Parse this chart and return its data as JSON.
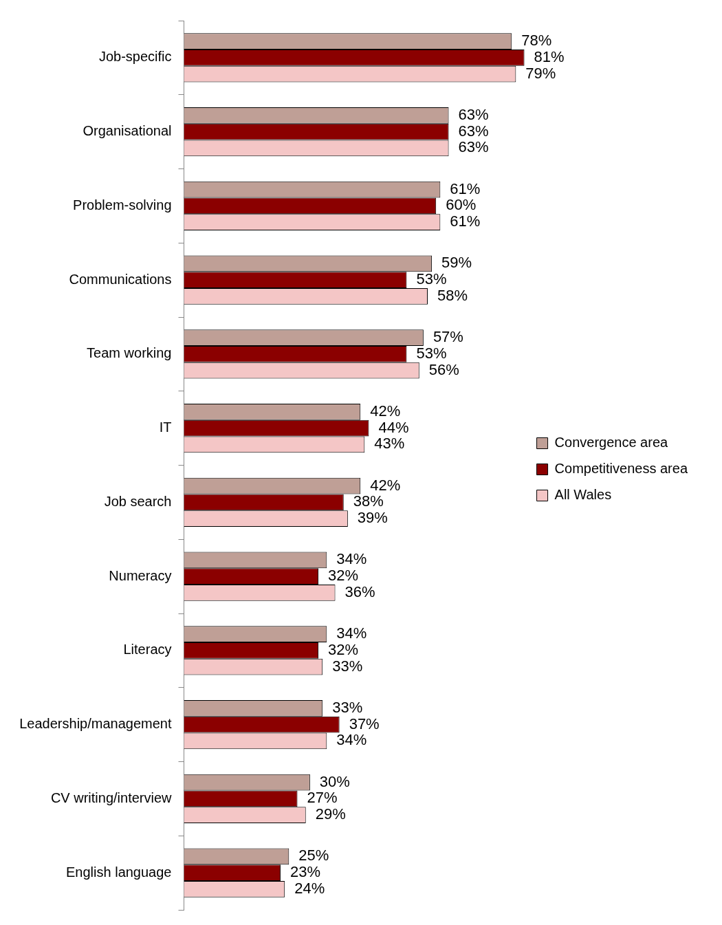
{
  "chart_data": {
    "type": "bar",
    "orientation": "horizontal",
    "legend": "right",
    "tick_labels": "y",
    "categories": [
      "Job-specific",
      "Organisational",
      "Problem-solving",
      "Communications",
      "Team working",
      "IT",
      "Job search",
      "Numeracy",
      "Literacy",
      "Leadership/management",
      "CV writing/interview",
      "English language"
    ],
    "series": [
      {
        "name": "Convergence area",
        "color": "#bf9f96",
        "values": [
          78,
          63,
          61,
          59,
          57,
          42,
          42,
          34,
          34,
          33,
          30,
          25
        ],
        "value_labels": [
          "78%",
          "63%",
          "61%",
          "59%",
          "57%",
          "42%",
          "42%",
          "34%",
          "34%",
          "33%",
          "30%",
          "25%"
        ]
      },
      {
        "name": "Competitiveness area",
        "color": "#8b0000",
        "values": [
          81,
          63,
          60,
          53,
          53,
          44,
          38,
          32,
          32,
          37,
          27,
          23
        ],
        "value_labels": [
          "81%",
          "63%",
          "60%",
          "53%",
          "53%",
          "44%",
          "38%",
          "32%",
          "32%",
          "37%",
          "27%",
          "23%"
        ]
      },
      {
        "name": "All Wales",
        "color": "#f4c6c6",
        "values": [
          79,
          63,
          61,
          58,
          56,
          43,
          39,
          36,
          33,
          34,
          29,
          24
        ],
        "value_labels": [
          "79%",
          "63%",
          "61%",
          "58%",
          "56%",
          "43%",
          "39%",
          "36%",
          "33%",
          "34%",
          "29%",
          "24%"
        ]
      }
    ]
  }
}
